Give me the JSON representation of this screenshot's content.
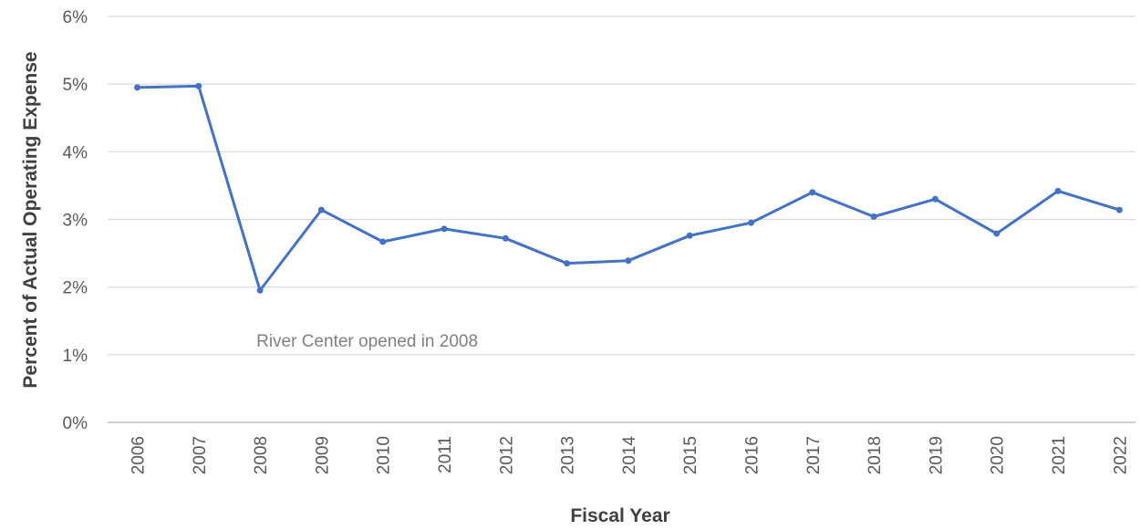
{
  "chart_data": {
    "type": "line",
    "title": "",
    "xlabel": "Fiscal Year",
    "ylabel": "Percent of Actual Operating Expense",
    "ylim": [
      0,
      6
    ],
    "y_tick_values": [
      0,
      1,
      2,
      3,
      4,
      5,
      6
    ],
    "y_tick_labels": [
      "0%",
      "1%",
      "2%",
      "3%",
      "4%",
      "5%",
      "6%"
    ],
    "grid": true,
    "legend": "none",
    "categories": [
      "2006",
      "2007",
      "2008",
      "2009",
      "2010",
      "2011",
      "2012",
      "2013",
      "2014",
      "2015",
      "2016",
      "2017",
      "2018",
      "2019",
      "2020",
      "2021",
      "2022"
    ],
    "series": [
      {
        "color": "#4472c4",
        "values": [
          4.95,
          4.97,
          1.95,
          3.14,
          2.67,
          2.86,
          2.72,
          2.35,
          2.39,
          2.76,
          2.95,
          3.4,
          3.04,
          3.3,
          2.79,
          3.42,
          3.14
        ]
      }
    ],
    "annotations": [
      {
        "text": "River Center opened in 2008",
        "x": "2008",
        "y": 1.2
      }
    ]
  }
}
